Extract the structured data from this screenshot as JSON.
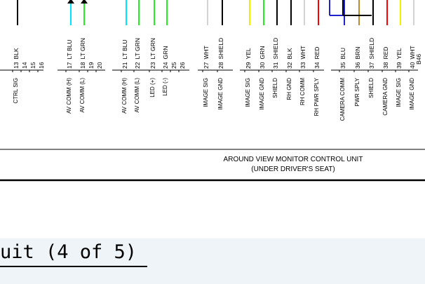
{
  "colors": {
    "cyan_wire": "#00e5ff",
    "green_wire": "#22ee22",
    "yellow_wire": "#f0f000",
    "red_wire": "#ff0000",
    "blue_wire": "#2222cc",
    "brown_wire": "#c08a2a",
    "white_wire": "#c8c8c8",
    "black_wire": "#000000",
    "background_band": "#eef4f8"
  },
  "pins": [
    {
      "id": "p13",
      "pin": "13",
      "color": "BLK",
      "func": "CTRL SIG",
      "wire": "black"
    },
    {
      "id": "p14",
      "pin": "14",
      "color": "",
      "func": "",
      "wire": ""
    },
    {
      "id": "p15",
      "pin": "15",
      "color": "",
      "func": "",
      "wire": ""
    },
    {
      "id": "p16",
      "pin": "16",
      "color": "",
      "func": "",
      "wire": ""
    },
    {
      "id": "p17",
      "pin": "17",
      "color": "LT BLU",
      "func": "AV COMM (H)",
      "wire": "cyan"
    },
    {
      "id": "p18",
      "pin": "18",
      "color": "LT GRN",
      "func": "AV COMM (L)",
      "wire": "green"
    },
    {
      "id": "p19",
      "pin": "19",
      "color": "",
      "func": "",
      "wire": ""
    },
    {
      "id": "p20",
      "pin": "20",
      "color": "",
      "func": "",
      "wire": ""
    },
    {
      "id": "p21",
      "pin": "21",
      "color": "LT BLU",
      "func": "AV COMM (H)",
      "wire": "cyan"
    },
    {
      "id": "p22",
      "pin": "22",
      "color": "LT GRN",
      "func": "AV COMM (L)",
      "wire": "green"
    },
    {
      "id": "p23",
      "pin": "23",
      "color": "LT GRN",
      "func": "LED (+)",
      "wire": "green"
    },
    {
      "id": "p24",
      "pin": "24",
      "color": "GRN",
      "func": "LED (-)",
      "wire": "green"
    },
    {
      "id": "p25",
      "pin": "25",
      "color": "",
      "func": "",
      "wire": ""
    },
    {
      "id": "p26",
      "pin": "26",
      "color": "",
      "func": "",
      "wire": ""
    },
    {
      "id": "p27",
      "pin": "27",
      "color": "WHT",
      "func": "IMAGE SIG",
      "wire": "white"
    },
    {
      "id": "p28",
      "pin": "28",
      "color": "SHIELD",
      "func": "IMAGE GND",
      "wire": "black"
    },
    {
      "id": "p29",
      "pin": "29",
      "color": "YEL",
      "func": "IMAGE SIG",
      "wire": "yellow"
    },
    {
      "id": "p30",
      "pin": "30",
      "color": "GRN",
      "func": "IMAGE GND",
      "wire": "green"
    },
    {
      "id": "p31",
      "pin": "31",
      "color": "SHIELD",
      "func": "SHIELD",
      "wire": "black"
    },
    {
      "id": "p32",
      "pin": "32",
      "color": "BLK",
      "func": "RH GND",
      "wire": "black"
    },
    {
      "id": "p33",
      "pin": "33",
      "color": "WHT",
      "func": "RH COMM",
      "wire": "white"
    },
    {
      "id": "p34",
      "pin": "34",
      "color": "RED",
      "func": "RH PWR SPLY",
      "wire": "red"
    },
    {
      "id": "p35",
      "pin": "35",
      "color": "BLU",
      "func": "CAMERA COMM",
      "wire": "blue"
    },
    {
      "id": "p36",
      "pin": "36",
      "color": "BRN",
      "func": "PWR SPLY",
      "wire": "brown"
    },
    {
      "id": "p37",
      "pin": "37",
      "color": "SHIELD",
      "func": "SHIELD",
      "wire": "black"
    },
    {
      "id": "p38",
      "pin": "38",
      "color": "RED",
      "func": "CAMERA GND",
      "wire": "red"
    },
    {
      "id": "p39",
      "pin": "39",
      "color": "YEL",
      "func": "IMAGE SIG",
      "wire": "yellow"
    },
    {
      "id": "p40",
      "pin": "40",
      "color": "WHT",
      "func": "IMAGE GND",
      "wire": "white"
    }
  ],
  "connector_id": "B46",
  "unit": {
    "name": "AROUND VIEW MONITOR CONTROL UNIT",
    "location": "(UNDER DRIVER'S SEAT)"
  },
  "caption": "uit (4 of 5)"
}
